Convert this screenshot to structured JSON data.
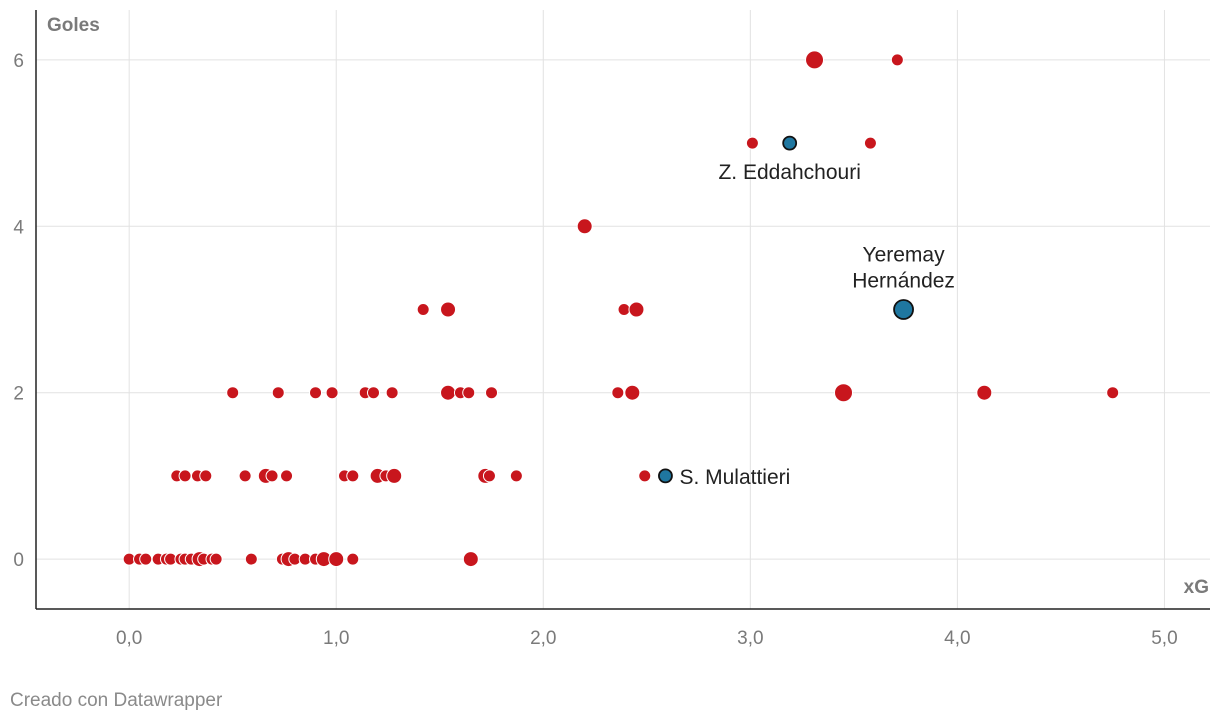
{
  "chart_data": {
    "type": "scatter",
    "title": "",
    "xlabel": "xG",
    "ylabel": "Goles",
    "xlim": [
      -0.45,
      5.22
    ],
    "ylim": [
      -0.6,
      6.6
    ],
    "xticks": [
      0,
      1,
      2,
      3,
      4,
      5
    ],
    "xtick_labels": [
      "0,0",
      "1,0",
      "2,0",
      "3,0",
      "4,0",
      "5,0"
    ],
    "yticks": [
      0,
      2,
      4,
      6
    ],
    "ytick_labels": [
      "0",
      "2",
      "4",
      "6"
    ],
    "grid": true,
    "colors": {
      "default": "#c8161d",
      "highlight": "#1f77a0",
      "grid": "#e2e2e2",
      "axis": "#222222"
    },
    "points": [
      {
        "x": 0.0,
        "y": 0,
        "size": "small"
      },
      {
        "x": 0.05,
        "y": 0,
        "size": "small"
      },
      {
        "x": 0.08,
        "y": 0,
        "size": "small"
      },
      {
        "x": 0.14,
        "y": 0,
        "size": "small"
      },
      {
        "x": 0.18,
        "y": 0,
        "size": "small"
      },
      {
        "x": 0.2,
        "y": 0,
        "size": "small"
      },
      {
        "x": 0.25,
        "y": 0,
        "size": "small"
      },
      {
        "x": 0.27,
        "y": 0,
        "size": "small"
      },
      {
        "x": 0.3,
        "y": 0,
        "size": "small"
      },
      {
        "x": 0.34,
        "y": 0,
        "size": "medium"
      },
      {
        "x": 0.36,
        "y": 0,
        "size": "small"
      },
      {
        "x": 0.4,
        "y": 0,
        "size": "small"
      },
      {
        "x": 0.42,
        "y": 0,
        "size": "small"
      },
      {
        "x": 0.59,
        "y": 0,
        "size": "small"
      },
      {
        "x": 0.74,
        "y": 0,
        "size": "small"
      },
      {
        "x": 0.77,
        "y": 0,
        "size": "medium"
      },
      {
        "x": 0.8,
        "y": 0,
        "size": "small"
      },
      {
        "x": 0.85,
        "y": 0,
        "size": "small"
      },
      {
        "x": 0.9,
        "y": 0,
        "size": "small"
      },
      {
        "x": 0.94,
        "y": 0,
        "size": "medium"
      },
      {
        "x": 1.0,
        "y": 0,
        "size": "medium"
      },
      {
        "x": 1.08,
        "y": 0,
        "size": "small"
      },
      {
        "x": 1.65,
        "y": 0,
        "size": "medium"
      },
      {
        "x": 0.23,
        "y": 1,
        "size": "small"
      },
      {
        "x": 0.27,
        "y": 1,
        "size": "small"
      },
      {
        "x": 0.33,
        "y": 1,
        "size": "small"
      },
      {
        "x": 0.37,
        "y": 1,
        "size": "small"
      },
      {
        "x": 0.56,
        "y": 1,
        "size": "small"
      },
      {
        "x": 0.66,
        "y": 1,
        "size": "medium"
      },
      {
        "x": 0.69,
        "y": 1,
        "size": "small"
      },
      {
        "x": 0.76,
        "y": 1,
        "size": "small"
      },
      {
        "x": 1.04,
        "y": 1,
        "size": "small"
      },
      {
        "x": 1.08,
        "y": 1,
        "size": "small"
      },
      {
        "x": 1.2,
        "y": 1,
        "size": "medium"
      },
      {
        "x": 1.24,
        "y": 1,
        "size": "small"
      },
      {
        "x": 1.28,
        "y": 1,
        "size": "medium"
      },
      {
        "x": 1.72,
        "y": 1,
        "size": "medium"
      },
      {
        "x": 1.74,
        "y": 1,
        "size": "small"
      },
      {
        "x": 1.87,
        "y": 1,
        "size": "small"
      },
      {
        "x": 2.49,
        "y": 1,
        "size": "small"
      },
      {
        "x": 0.5,
        "y": 2,
        "size": "small"
      },
      {
        "x": 0.72,
        "y": 2,
        "size": "small"
      },
      {
        "x": 0.9,
        "y": 2,
        "size": "small"
      },
      {
        "x": 0.98,
        "y": 2,
        "size": "small"
      },
      {
        "x": 1.14,
        "y": 2,
        "size": "small"
      },
      {
        "x": 1.18,
        "y": 2,
        "size": "small"
      },
      {
        "x": 1.27,
        "y": 2,
        "size": "small"
      },
      {
        "x": 1.54,
        "y": 2,
        "size": "medium"
      },
      {
        "x": 1.6,
        "y": 2,
        "size": "small"
      },
      {
        "x": 1.64,
        "y": 2,
        "size": "small"
      },
      {
        "x": 1.75,
        "y": 2,
        "size": "small"
      },
      {
        "x": 2.36,
        "y": 2,
        "size": "small"
      },
      {
        "x": 2.43,
        "y": 2,
        "size": "medium"
      },
      {
        "x": 3.45,
        "y": 2,
        "size": "large"
      },
      {
        "x": 4.13,
        "y": 2,
        "size": "medium"
      },
      {
        "x": 4.75,
        "y": 2,
        "size": "small"
      },
      {
        "x": 1.42,
        "y": 3,
        "size": "small"
      },
      {
        "x": 1.54,
        "y": 3,
        "size": "medium"
      },
      {
        "x": 2.39,
        "y": 3,
        "size": "small"
      },
      {
        "x": 2.45,
        "y": 3,
        "size": "medium"
      },
      {
        "x": 2.2,
        "y": 4,
        "size": "medium"
      },
      {
        "x": 3.01,
        "y": 5,
        "size": "small"
      },
      {
        "x": 3.58,
        "y": 5,
        "size": "small"
      },
      {
        "x": 3.31,
        "y": 6,
        "size": "large"
      },
      {
        "x": 3.71,
        "y": 6,
        "size": "small"
      },
      {
        "x": 3.19,
        "y": 5,
        "size": "small",
        "highlight": true
      },
      {
        "x": 3.74,
        "y": 3,
        "size": "large",
        "highlight": true
      },
      {
        "x": 2.59,
        "y": 1,
        "size": "small",
        "highlight": true
      }
    ],
    "annotations": [
      {
        "lines": [
          "Z. Eddahchouri"
        ],
        "x": 3.19,
        "y": 5,
        "placement": "below"
      },
      {
        "lines": [
          "Yeremay",
          "Hernández"
        ],
        "x": 3.74,
        "y": 3,
        "placement": "above"
      },
      {
        "lines": [
          "S. Mulattieri"
        ],
        "x": 2.59,
        "y": 1,
        "placement": "right"
      }
    ]
  },
  "footer": {
    "credit": "Creado con Datawrapper"
  }
}
